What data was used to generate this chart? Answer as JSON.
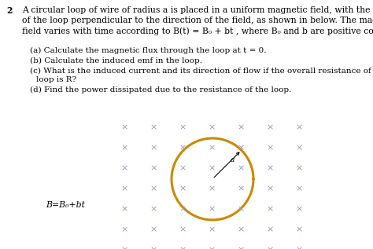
{
  "background_color": "#ffffff",
  "question_number": "2",
  "title_line1": "A circular loop of wire of radius a is placed in a uniform magnetic field, with the plane",
  "title_line2": "of the loop perpendicular to the direction of the field, as shown in below. The magnetic",
  "title_line3": "field varies with time according to B(t) = B₀ + bt , where B₀ and b are positive constants.",
  "part_a": "(a) Calculate the magnetic flux through the loop at t = 0.",
  "part_b": "(b) Calculate the induced emf in the loop.",
  "part_c1": "(c) What is the induced current and its direction of flow if the overall resistance of the",
  "part_c2": "        loop is R?",
  "part_d": "(d) Find the power dissipated due to the resistance of the loop.",
  "circle_color": "#cc8800",
  "circle_linewidth": 2.2,
  "x_color": "#9999bb",
  "label_B": "B=B₀+bt",
  "label_a": "a"
}
